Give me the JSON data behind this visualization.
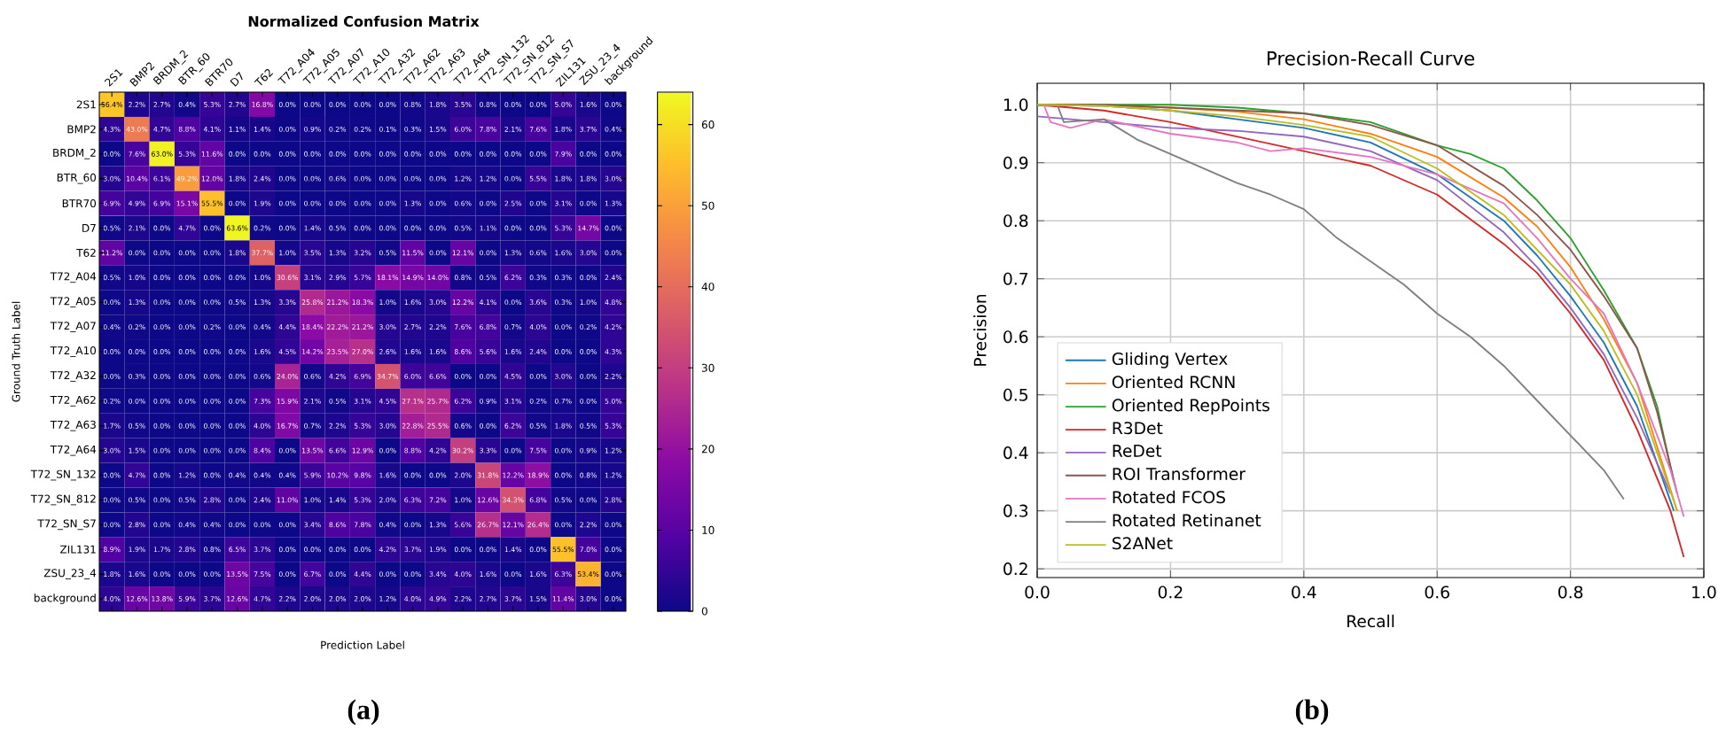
{
  "chart_data": [
    {
      "type": "heatmap",
      "title": "Normalized Confusion Matrix",
      "xlabel": "Prediction Label",
      "ylabel": "Ground Truth Label",
      "categories": [
        "2S1",
        "BMP2",
        "BRDM_2",
        "BTR_60",
        "BTR70",
        "D7",
        "T62",
        "T72_A04",
        "T72_A05",
        "T72_A07",
        "T72_A10",
        "T72_A32",
        "T72_A62",
        "T72_A63",
        "T72_A64",
        "T72_SN_132",
        "T72_SN_812",
        "T72_SN_S7",
        "ZIL131",
        "ZSU_23_4",
        "background"
      ],
      "y_categories": [
        "2S1",
        "BMP2",
        "BRDM_2",
        "BTR_60",
        "BTR70",
        "D7",
        "T62",
        "T72_A04",
        "T72_A05",
        "T72_A07",
        "T72_A10",
        "T72_A32",
        "T72_A62",
        "T72_A63",
        "T72_A64",
        "T72_SN_132",
        "T72_SN_812",
        "T72_SN_S7",
        "ZIL131",
        "ZSU_23_4",
        "background"
      ],
      "cells": [
        [
          56.4,
          2.2,
          2.7,
          0.4,
          5.3,
          2.7,
          16.8,
          0.0,
          0.0,
          0.0,
          0.0,
          0.0,
          0.8,
          1.8,
          3.5,
          0.8,
          0.0,
          0.0,
          5.0,
          1.6,
          0.0
        ],
        [
          4.3,
          43.0,
          4.7,
          8.8,
          4.1,
          1.1,
          1.4,
          0.0,
          0.9,
          0.2,
          0.2,
          0.1,
          0.3,
          1.5,
          6.0,
          7.8,
          2.1,
          7.6,
          1.8,
          3.7,
          0.4
        ],
        [
          0.0,
          7.6,
          63.0,
          5.3,
          11.6,
          0.0,
          0.0,
          0.0,
          0.0,
          0.0,
          0.0,
          0.0,
          0.0,
          0.0,
          0.0,
          0.0,
          0.0,
          0.0,
          7.9,
          0.0,
          0.0
        ],
        [
          3.0,
          10.4,
          6.1,
          49.2,
          12.0,
          1.8,
          2.4,
          0.0,
          0.0,
          0.6,
          0.0,
          0.0,
          0.0,
          0.0,
          1.2,
          1.2,
          0.0,
          5.5,
          1.8,
          1.8,
          3.0
        ],
        [
          6.9,
          4.9,
          6.9,
          15.1,
          55.5,
          0.0,
          1.9,
          0.0,
          0.0,
          0.0,
          0.0,
          0.0,
          1.3,
          0.0,
          0.6,
          0.0,
          2.5,
          0.0,
          3.1,
          0.0,
          1.3
        ],
        [
          0.5,
          2.1,
          0.0,
          4.7,
          0.0,
          63.6,
          0.2,
          0.0,
          1.4,
          0.5,
          0.0,
          0.0,
          0.0,
          0.0,
          0.5,
          1.1,
          0.0,
          0.0,
          5.3,
          14.7,
          0.0
        ],
        [
          11.2,
          0.0,
          0.0,
          0.0,
          0.0,
          1.8,
          37.7,
          1.0,
          3.5,
          1.3,
          3.2,
          0.5,
          11.5,
          0.0,
          12.1,
          0.0,
          1.3,
          0.6,
          1.6,
          3.0,
          0.0
        ],
        [
          0.5,
          1.0,
          0.0,
          0.0,
          0.0,
          0.0,
          1.0,
          30.6,
          3.1,
          2.9,
          5.7,
          18.1,
          14.9,
          14.0,
          0.8,
          0.5,
          6.2,
          0.3,
          0.3,
          0.0,
          2.4
        ],
        [
          0.0,
          1.3,
          0.0,
          0.0,
          0.0,
          0.5,
          1.3,
          3.3,
          25.8,
          21.2,
          18.3,
          1.0,
          1.6,
          3.0,
          12.2,
          4.1,
          0.0,
          3.6,
          0.3,
          1.0,
          4.8
        ],
        [
          0.4,
          0.2,
          0.0,
          0.0,
          0.2,
          0.0,
          0.4,
          4.4,
          18.4,
          22.2,
          21.2,
          3.0,
          2.7,
          2.2,
          7.6,
          6.8,
          0.7,
          4.0,
          0.0,
          0.2,
          4.2
        ],
        [
          0.0,
          0.0,
          0.0,
          0.0,
          0.0,
          0.0,
          1.6,
          4.5,
          14.2,
          23.5,
          27.0,
          2.6,
          1.6,
          1.6,
          8.6,
          5.6,
          1.6,
          2.4,
          0.0,
          0.0,
          4.3
        ],
        [
          0.0,
          0.3,
          0.0,
          0.0,
          0.0,
          0.0,
          0.6,
          24.0,
          0.6,
          4.2,
          6.9,
          34.7,
          6.0,
          6.6,
          0.0,
          0.0,
          4.5,
          0.0,
          3.0,
          0.0,
          2.2
        ],
        [
          0.2,
          0.0,
          0.0,
          0.0,
          0.0,
          0.0,
          7.3,
          15.9,
          2.1,
          0.5,
          3.1,
          4.5,
          27.1,
          25.7,
          6.2,
          0.9,
          3.1,
          0.2,
          0.7,
          0.0,
          5.0
        ],
        [
          1.7,
          0.5,
          0.0,
          0.0,
          0.0,
          0.0,
          4.0,
          16.7,
          0.7,
          2.2,
          5.3,
          3.0,
          22.8,
          25.5,
          0.6,
          0.0,
          6.2,
          0.5,
          1.8,
          0.5,
          5.3
        ],
        [
          3.0,
          1.5,
          0.0,
          0.0,
          0.0,
          0.0,
          8.4,
          0.0,
          13.5,
          6.6,
          12.9,
          0.0,
          8.8,
          4.2,
          30.2,
          3.3,
          0.0,
          7.5,
          0.0,
          0.9,
          1.2
        ],
        [
          0.0,
          4.7,
          0.0,
          1.2,
          0.0,
          0.4,
          0.4,
          0.4,
          5.9,
          10.2,
          9.8,
          1.6,
          0.0,
          0.0,
          2.0,
          31.8,
          12.2,
          18.9,
          0.0,
          0.8,
          1.2
        ],
        [
          0.0,
          0.5,
          0.0,
          0.5,
          2.8,
          0.0,
          2.4,
          11.0,
          1.0,
          1.4,
          5.3,
          2.0,
          6.3,
          7.2,
          1.0,
          12.6,
          34.3,
          6.8,
          0.5,
          0.0,
          2.8
        ],
        [
          0.0,
          2.8,
          0.0,
          0.4,
          0.4,
          0.0,
          0.0,
          0.0,
          3.4,
          8.6,
          7.8,
          0.4,
          0.0,
          1.3,
          5.6,
          26.7,
          12.1,
          26.4,
          0.0,
          2.2,
          0.0
        ],
        [
          8.9,
          1.9,
          1.7,
          2.8,
          0.8,
          6.5,
          3.7,
          0.0,
          0.0,
          0.0,
          0.0,
          4.2,
          3.7,
          1.9,
          0.0,
          0.0,
          1.4,
          0.0,
          55.5,
          7.0,
          0.0
        ],
        [
          1.8,
          1.6,
          0.0,
          0.0,
          0.0,
          13.5,
          7.5,
          0.0,
          6.7,
          0.0,
          4.4,
          0.0,
          0.0,
          3.4,
          4.0,
          1.6,
          0.0,
          1.6,
          6.3,
          53.4,
          0.0
        ],
        [
          4.0,
          12.6,
          13.8,
          5.9,
          3.7,
          12.6,
          4.7,
          2.2,
          2.0,
          2.0,
          2.0,
          1.2,
          4.0,
          4.9,
          2.2,
          2.7,
          3.7,
          1.5,
          11.4,
          3.0,
          0.0
        ]
      ],
      "cell_labels": [
        [
          "56.4%",
          "2.2%",
          "2.7%",
          "0.4%",
          "5.3%",
          "2.7%",
          "16.8%",
          "0.0%",
          "0.0%",
          "0.0%",
          "0.0%",
          "0.0%",
          "0.8%",
          "1.8%",
          "3.5%",
          "0.8%",
          "0.0%",
          "0.0%",
          "5.0%",
          "1.6%",
          "0.0%"
        ],
        [
          "4.3%",
          "43.0%",
          "4.7%",
          "8.8%",
          "4.1%",
          "1.1%",
          "1.4%",
          "0.0%",
          "0.9%",
          "0.2%",
          "0.2%",
          "0.1%",
          "0.3%",
          "1.5%",
          "6.0%",
          "7.8%",
          "2.1%",
          "7.6%",
          "1.8%",
          "3.7%",
          "0.4%"
        ],
        [
          "0.0%",
          "7.6%",
          "63.0%",
          "5.3%",
          "11.6%",
          "0.0%",
          "0.0%",
          "0.0%",
          "0.0%",
          "0.0%",
          "0.0%",
          "0.0%",
          "0.0%",
          "0.0%",
          "0.0%",
          "0.0%",
          "0.0%",
          "0.0%",
          "7.9%",
          "0.0%",
          "0.0%"
        ],
        [
          "3.0%",
          "10.4%",
          "6.1%",
          "49.2%",
          "12.0%",
          "1.8%",
          "2.4%",
          "0.0%",
          "0.0%",
          "0.6%",
          "0.0%",
          "0.0%",
          "0.0%",
          "0.0%",
          "1.2%",
          "1.2%",
          "0.0%",
          "5.5%",
          "1.8%",
          "1.8%",
          "3.0%"
        ],
        [
          "6.9%",
          "4.9%",
          "6.9%",
          "15.1%",
          "55.5%",
          "0.0%",
          "1.9%",
          "0.0%",
          "0.0%",
          "0.0%",
          "0.0%",
          "0.0%",
          "1.3%",
          "0.0%",
          "0.6%",
          "0.0%",
          "2.5%",
          "0.0%",
          "3.1%",
          "0.0%",
          "1.3%"
        ],
        [
          "0.5%",
          "2.1%",
          "0.0%",
          "4.7%",
          "0.0%",
          "63.6%",
          "0.2%",
          "0.0%",
          "1.4%",
          "0.5%",
          "0.0%",
          "0.0%",
          "0.0%",
          "0.0%",
          "0.5%",
          "1.1%",
          "0.0%",
          "0.0%",
          "5.3%",
          "14.7%",
          "0.0%"
        ],
        [
          "11.2%",
          "0.0%",
          "0.0%",
          "0.0%",
          "0.0%",
          "1.8%",
          "37.7%",
          "1.0%",
          "3.5%",
          "1.3%",
          "3.2%",
          "0.5%",
          "11.5%",
          "0.0%",
          "12.1%",
          "0.0%",
          "1.3%",
          "0.6%",
          "1.6%",
          "3.0%",
          "0.0%"
        ],
        [
          "0.5%",
          "1.0%",
          "0.0%",
          "0.0%",
          "0.0%",
          "0.0%",
          "1.0%",
          "30.6%",
          "3.1%",
          "2.9%",
          "5.7%",
          "18.1%",
          "14.9%",
          "14.0%",
          "0.8%",
          "0.5%",
          "6.2%",
          "0.3%",
          "0.3%",
          "0.0%",
          "2.4%"
        ],
        [
          "0.0%",
          "1.3%",
          "0.0%",
          "0.0%",
          "0.0%",
          "0.5%",
          "1.3%",
          "3.3%",
          "25.8%",
          "21.2%",
          "18.3%",
          "1.0%",
          "1.6%",
          "3.0%",
          "12.2%",
          "4.1%",
          "0.0%",
          "3.6%",
          "0.3%",
          "1.0%",
          "4.8%"
        ],
        [
          "0.4%",
          "0.2%",
          "0.0%",
          "0.0%",
          "0.2%",
          "0.0%",
          "0.4%",
          "4.4%",
          "18.4%",
          "22.2%",
          "21.2%",
          "3.0%",
          "2.7%",
          "2.2%",
          "7.6%",
          "6.8%",
          "0.7%",
          "4.0%",
          "0.0%",
          "0.2%",
          "4.2%"
        ],
        [
          "0.0%",
          "0.0%",
          "0.0%",
          "0.0%",
          "0.0%",
          "0.0%",
          "1.6%",
          "4.5%",
          "14.2%",
          "23.5%",
          "27.0%",
          "2.6%",
          "1.6%",
          "1.6%",
          "8.6%",
          "5.6%",
          "1.6%",
          "2.4%",
          "0.0%",
          "0.0%",
          "4.3%"
        ],
        [
          "0.0%",
          "0.3%",
          "0.0%",
          "0.0%",
          "0.0%",
          "0.0%",
          "0.6%",
          "24.0%",
          "0.6%",
          "4.2%",
          "6.9%",
          "34.7%",
          "6.0%",
          "6.6%",
          "0.0%",
          "0.0%",
          "4.5%",
          "0.0%",
          "3.0%",
          "0.0%",
          "2.2%"
        ],
        [
          "0.2%",
          "0.0%",
          "0.0%",
          "0.0%",
          "0.0%",
          "0.0%",
          "7.3%",
          "15.9%",
          "2.1%",
          "0.5%",
          "3.1%",
          "4.5%",
          "27.1%",
          "25.7%",
          "6.2%",
          "0.9%",
          "3.1%",
          "0.2%",
          "0.7%",
          "0.0%",
          "5.0%"
        ],
        [
          "1.7%",
          "0.5%",
          "0.0%",
          "0.0%",
          "0.0%",
          "0.0%",
          "4.0%",
          "16.7%",
          "0.7%",
          "2.2%",
          "5.3%",
          "3.0%",
          "22.8%",
          "25.5%",
          "0.6%",
          "0.0%",
          "6.2%",
          "0.5%",
          "1.8%",
          "0.5%",
          "5.3%"
        ],
        [
          "3.0%",
          "1.5%",
          "0.0%",
          "0.0%",
          "0.0%",
          "0.0%",
          "8.4%",
          "0.0%",
          "13.5%",
          "6.6%",
          "12.9%",
          "0.0%",
          "8.8%",
          "4.2%",
          "30.2%",
          "3.3%",
          "0.0%",
          "7.5%",
          "0.0%",
          "0.9%",
          "1.2%"
        ],
        [
          "0.0%",
          "4.7%",
          "0.0%",
          "1.2%",
          "0.0%",
          "0.4%",
          "0.4%",
          "0.4%",
          "5.9%",
          "10.2%",
          "9.8%",
          "1.6%",
          "0.0%",
          "0.0%",
          "2.0%",
          "31.8%",
          "12.2%",
          "18.9%",
          "0.0%",
          "0.8%",
          "1.2%"
        ],
        [
          "0.0%",
          "0.5%",
          "0.0%",
          "0.5%",
          "2.8%",
          "0.0%",
          "2.4%",
          "11.0%",
          "1.0%",
          "1.4%",
          "5.3%",
          "2.0%",
          "6.3%",
          "7.2%",
          "1.0%",
          "12.6%",
          "34.3%",
          "6.8%",
          "0.5%",
          "0.0%",
          "2.8%"
        ],
        [
          "0.0%",
          "2.8%",
          "0.0%",
          "0.4%",
          "0.4%",
          "0.0%",
          "0.0%",
          "0.0%",
          "3.4%",
          "8.6%",
          "7.8%",
          "0.4%",
          "0.0%",
          "1.3%",
          "5.6%",
          "26.7%",
          "12.1%",
          "26.4%",
          "0.0%",
          "2.2%",
          "0.0%"
        ],
        [
          "8.9%",
          "1.9%",
          "1.7%",
          "2.8%",
          "0.8%",
          "6.5%",
          "3.7%",
          "0.0%",
          "0.0%",
          "0.0%",
          "0.0%",
          "4.2%",
          "3.7%",
          "1.9%",
          "0.0%",
          "0.0%",
          "1.4%",
          "0.0%",
          "55.5%",
          "7.0%",
          "0.0%"
        ],
        [
          "1.8%",
          "1.6%",
          "0.0%",
          "0.0%",
          "0.0%",
          "13.5%",
          "7.5%",
          "0.0%",
          "6.7%",
          "0.0%",
          "4.4%",
          "0.0%",
          "0.0%",
          "3.4%",
          "4.0%",
          "1.6%",
          "0.0%",
          "1.6%",
          "6.3%",
          "53.4%",
          "0.0%"
        ],
        [
          "4.0%",
          "12.6%",
          "13.8%",
          "5.9%",
          "3.7%",
          "12.6%",
          "4.7%",
          "2.2%",
          "2.0%",
          "2.0%",
          "2.0%",
          "1.2%",
          "4.0%",
          "4.9%",
          "2.2%",
          "2.7%",
          "3.7%",
          "1.5%",
          "11.4%",
          "3.0%",
          "0.0%"
        ]
      ],
      "clim": [
        0,
        64
      ],
      "cticks": [
        0,
        10,
        20,
        30,
        40,
        50,
        60
      ],
      "annotations": [
        "(a)"
      ]
    },
    {
      "type": "line",
      "title": "Precision-Recall Curve",
      "xlabel": "Recall",
      "ylabel": "Precision",
      "xlim": [
        0,
        1
      ],
      "ylim": [
        0.185,
        1.037
      ],
      "xticks": [
        {
          "value": 0,
          "label": "0.0"
        },
        0.2,
        0.4,
        0.6,
        0.8,
        {
          "value": 1,
          "label": "1.0"
        }
      ],
      "yticks": [
        0.2,
        0.3,
        0.4,
        0.5,
        0.6,
        0.7,
        0.8,
        0.9,
        {
          "value": 1,
          "label": "1.0"
        }
      ],
      "grid": true,
      "legend": "bottom left",
      "annotations": [
        "(b)"
      ],
      "series": [
        {
          "name": "Gliding Vertex",
          "color": "#1f77b4",
          "x": [
            0,
            0.1,
            0.2,
            0.3,
            0.4,
            0.5,
            0.6,
            0.7,
            0.75,
            0.8,
            0.85,
            0.9,
            0.955
          ],
          "values": [
            1.0,
            0.998,
            0.99,
            0.975,
            0.96,
            0.935,
            0.88,
            0.8,
            0.74,
            0.67,
            0.59,
            0.48,
            0.3
          ]
        },
        {
          "name": "Oriented RCNN",
          "color": "#ff7f0e",
          "x": [
            0,
            0.1,
            0.2,
            0.3,
            0.4,
            0.5,
            0.6,
            0.7,
            0.75,
            0.8,
            0.85,
            0.9,
            0.96
          ],
          "values": [
            1.0,
            0.999,
            0.995,
            0.988,
            0.975,
            0.95,
            0.91,
            0.84,
            0.79,
            0.72,
            0.63,
            0.52,
            0.3
          ]
        },
        {
          "name": "Oriented RepPoints",
          "color": "#2ca02c",
          "x": [
            0,
            0.1,
            0.2,
            0.3,
            0.4,
            0.5,
            0.6,
            0.65,
            0.7,
            0.75,
            0.8,
            0.85,
            0.9,
            0.93,
            0.955
          ],
          "values": [
            1.0,
            1.0,
            1.0,
            0.995,
            0.985,
            0.97,
            0.93,
            0.915,
            0.89,
            0.835,
            0.77,
            0.68,
            0.58,
            0.48,
            0.35
          ]
        },
        {
          "name": "R3Det",
          "color": "#d62728",
          "x": [
            0,
            0.1,
            0.2,
            0.3,
            0.4,
            0.5,
            0.6,
            0.7,
            0.75,
            0.8,
            0.85,
            0.9,
            0.95,
            0.97
          ],
          "values": [
            1.0,
            0.99,
            0.97,
            0.945,
            0.92,
            0.895,
            0.845,
            0.76,
            0.71,
            0.64,
            0.56,
            0.44,
            0.3,
            0.22
          ]
        },
        {
          "name": "ReDet",
          "color": "#9467bd",
          "x": [
            0,
            0.05,
            0.1,
            0.2,
            0.3,
            0.4,
            0.5,
            0.6,
            0.7,
            0.75,
            0.8,
            0.85,
            0.9,
            0.95
          ],
          "values": [
            0.98,
            0.975,
            0.97,
            0.96,
            0.955,
            0.945,
            0.92,
            0.87,
            0.78,
            0.72,
            0.65,
            0.57,
            0.46,
            0.33
          ]
        },
        {
          "name": "ROI Transformer",
          "color": "#8c564b",
          "x": [
            0,
            0.1,
            0.2,
            0.3,
            0.4,
            0.5,
            0.6,
            0.7,
            0.75,
            0.8,
            0.85,
            0.9,
            0.93,
            0.96
          ],
          "values": [
            1.0,
            1.0,
            0.995,
            0.99,
            0.985,
            0.965,
            0.93,
            0.86,
            0.81,
            0.75,
            0.67,
            0.58,
            0.47,
            0.33
          ]
        },
        {
          "name": "Rotated FCOS",
          "color": "#e377c2",
          "x": [
            0.01,
            0.02,
            0.05,
            0.1,
            0.2,
            0.3,
            0.35,
            0.4,
            0.5,
            0.6,
            0.7,
            0.75,
            0.8,
            0.85,
            0.9,
            0.95,
            0.97
          ],
          "values": [
            1.0,
            0.97,
            0.96,
            0.975,
            0.95,
            0.935,
            0.92,
            0.925,
            0.91,
            0.88,
            0.83,
            0.77,
            0.7,
            0.64,
            0.52,
            0.37,
            0.29
          ]
        },
        {
          "name": "Rotated Retinanet",
          "color": "#7f7f7f",
          "x": [
            0,
            0.03,
            0.04,
            0.1,
            0.15,
            0.2,
            0.25,
            0.3,
            0.35,
            0.4,
            0.45,
            0.5,
            0.55,
            0.6,
            0.65,
            0.7,
            0.75,
            0.8,
            0.85,
            0.88
          ],
          "values": [
            1.0,
            1.0,
            0.97,
            0.975,
            0.94,
            0.915,
            0.89,
            0.865,
            0.845,
            0.82,
            0.77,
            0.73,
            0.69,
            0.64,
            0.6,
            0.55,
            0.49,
            0.43,
            0.37,
            0.32
          ]
        },
        {
          "name": "S2ANet",
          "color": "#bcbd22",
          "x": [
            0,
            0.1,
            0.2,
            0.3,
            0.4,
            0.5,
            0.6,
            0.7,
            0.75,
            0.8,
            0.85,
            0.9,
            0.96
          ],
          "values": [
            1.0,
            0.998,
            0.99,
            0.98,
            0.965,
            0.945,
            0.89,
            0.81,
            0.75,
            0.69,
            0.61,
            0.5,
            0.3
          ]
        }
      ]
    }
  ]
}
